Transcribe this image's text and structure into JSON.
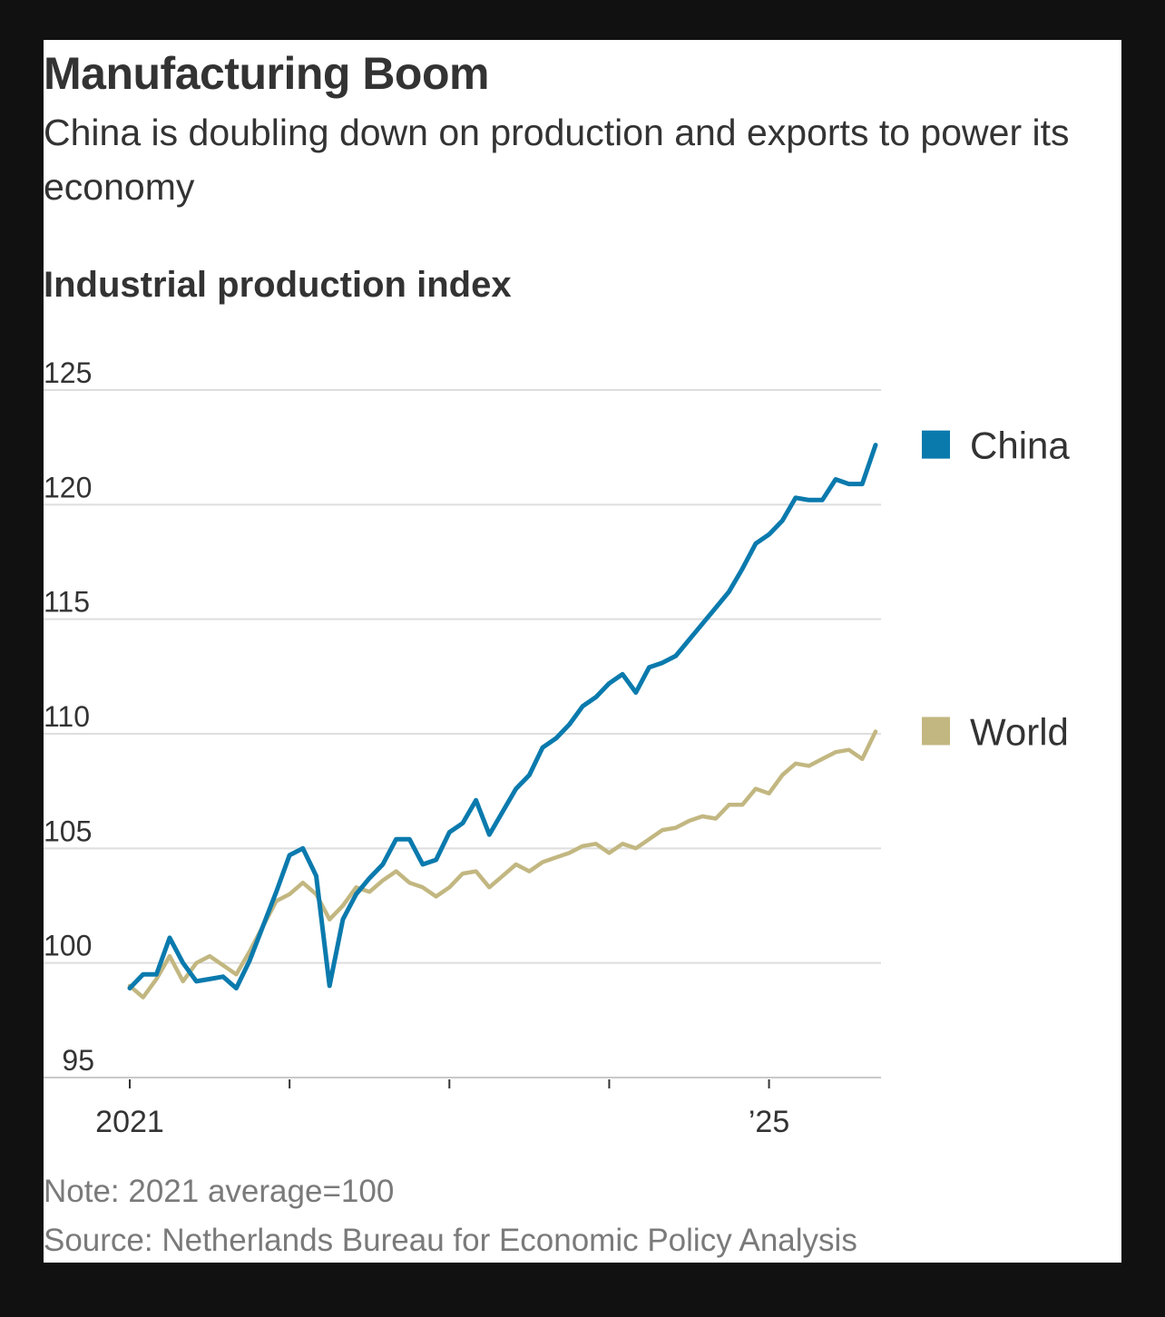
{
  "header": {
    "title": "Manufacturing Boom",
    "subtitle": "China is doubling down on production and exports to power its economy"
  },
  "chart_data": {
    "type": "line",
    "title": "Industrial production index",
    "xlabel": "",
    "ylabel": "",
    "ylim": [
      95,
      125
    ],
    "yticks": [
      "125",
      "120",
      "115",
      "110",
      "105",
      "100",
      "95"
    ],
    "xtick_labels": [
      {
        "label": "2021",
        "month": 0
      },
      {
        "label": "’25",
        "month": 48
      }
    ],
    "x_minor_ticks": [
      0,
      12,
      24,
      36,
      48
    ],
    "legend_position": "right",
    "series": [
      {
        "name": "China",
        "color": "#0a7aad",
        "values": [
          98.9,
          99.5,
          99.5,
          101.1,
          100.0,
          99.2,
          99.3,
          99.4,
          98.9,
          100.1,
          101.6,
          103.1,
          104.7,
          105.0,
          103.8,
          99.0,
          101.9,
          103.0,
          103.7,
          104.3,
          105.4,
          105.4,
          104.3,
          104.5,
          105.7,
          106.1,
          107.1,
          105.6,
          106.6,
          107.6,
          108.2,
          109.4,
          109.8,
          110.4,
          111.2,
          111.6,
          112.2,
          112.6,
          111.8,
          112.9,
          113.1,
          113.4,
          114.1,
          114.8,
          115.5,
          116.2,
          117.2,
          118.3,
          118.7,
          119.3,
          120.3,
          120.2,
          120.2,
          121.1,
          120.9,
          120.9,
          122.6
        ]
      },
      {
        "name": "World",
        "color": "#c2b781",
        "values": [
          99.0,
          98.5,
          99.3,
          100.3,
          99.2,
          100.0,
          100.3,
          99.9,
          99.5,
          100.5,
          101.6,
          102.7,
          103.0,
          103.5,
          103.0,
          101.9,
          102.5,
          103.3,
          103.1,
          103.6,
          104.0,
          103.5,
          103.3,
          102.9,
          103.3,
          103.9,
          104.0,
          103.3,
          103.8,
          104.3,
          104.0,
          104.4,
          104.6,
          104.8,
          105.1,
          105.2,
          104.8,
          105.2,
          105.0,
          105.4,
          105.8,
          105.9,
          106.2,
          106.4,
          106.3,
          106.9,
          106.9,
          107.6,
          107.4,
          108.2,
          108.7,
          108.6,
          108.9,
          109.2,
          109.3,
          108.9,
          110.1
        ]
      }
    ]
  },
  "footer": {
    "note": "Note: 2021 average=100",
    "source": "Source: Netherlands Bureau for Economic Policy Analysis"
  }
}
